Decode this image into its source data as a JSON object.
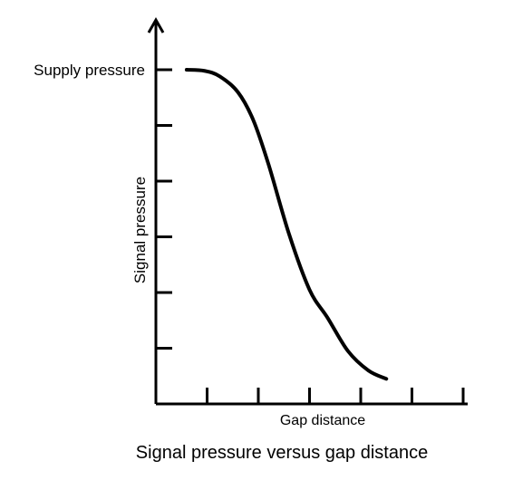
{
  "chart_data": {
    "type": "line",
    "title": "Signal pressure versus gap distance",
    "xlabel": "Gap distance",
    "ylabel": "Signal pressure",
    "y_tick_label": "Supply pressure",
    "grid": false,
    "xlim": [
      0,
      6
    ],
    "ylim": [
      0,
      6
    ],
    "x_ticks": [
      1,
      2,
      3,
      4,
      5,
      6
    ],
    "y_ticks": [
      1,
      2,
      3,
      4,
      5,
      6
    ],
    "y_tick_label_at": 6,
    "series": [
      {
        "x": [
          0.6,
          0.95,
          1.25,
          1.6,
          1.9,
          2.2,
          2.6,
          3.0,
          3.35,
          3.75,
          4.15,
          4.5
        ],
        "values": [
          6.0,
          5.98,
          5.88,
          5.6,
          5.1,
          4.3,
          3.05,
          2.05,
          1.55,
          0.95,
          0.6,
          0.45
        ]
      }
    ]
  }
}
